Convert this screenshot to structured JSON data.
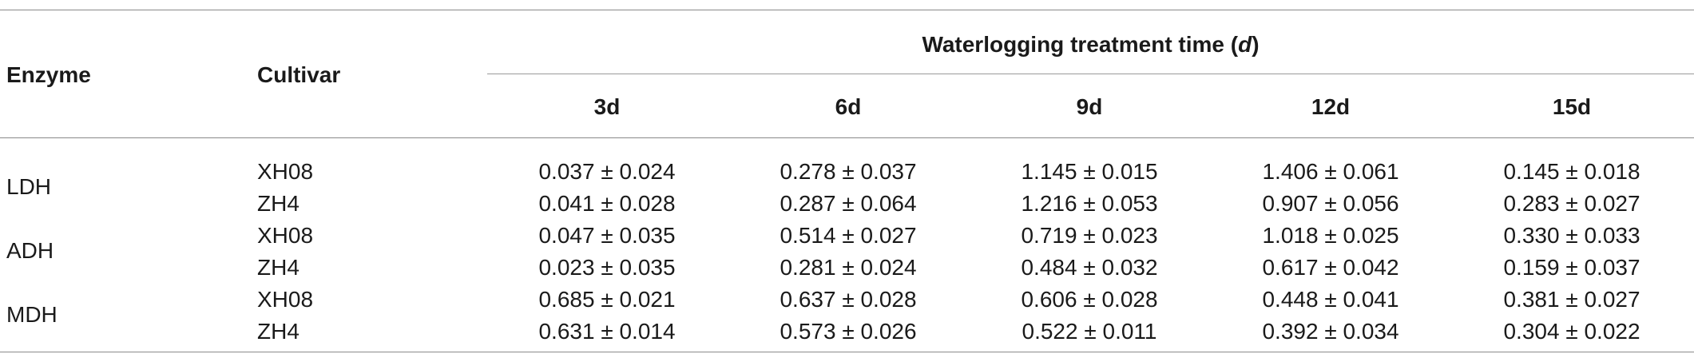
{
  "table": {
    "enzyme_header": "Enzyme",
    "cultivar_header": "Cultivar",
    "span_header": "Waterlogging treatment time (",
    "span_header_unit": "d",
    "span_header_close": ")",
    "columns": [
      "3d",
      "6d",
      "9d",
      "12d",
      "15d"
    ],
    "groups": [
      {
        "enzyme": "LDH",
        "rows": [
          {
            "cultivar": "XH08",
            "values": [
              "0.037 ± 0.024",
              "0.278 ± 0.037",
              "1.145 ± 0.015",
              "1.406 ± 0.061",
              "0.145 ± 0.018"
            ]
          },
          {
            "cultivar": "ZH4",
            "values": [
              "0.041 ± 0.028",
              "0.287 ± 0.064",
              "1.216 ± 0.053",
              "0.907 ± 0.056",
              "0.283 ± 0.027"
            ]
          }
        ]
      },
      {
        "enzyme": "ADH",
        "rows": [
          {
            "cultivar": "XH08",
            "values": [
              "0.047 ± 0.035",
              "0.514 ± 0.027",
              "0.719 ± 0.023",
              "1.018 ± 0.025",
              "0.330 ± 0.033"
            ]
          },
          {
            "cultivar": "ZH4",
            "values": [
              "0.023 ± 0.035",
              "0.281 ± 0.024",
              "0.484 ± 0.032",
              "0.617 ± 0.042",
              "0.159 ± 0.037"
            ]
          }
        ]
      },
      {
        "enzyme": "MDH",
        "rows": [
          {
            "cultivar": "XH08",
            "values": [
              "0.685 ± 0.021",
              "0.637 ± 0.028",
              "0.606 ± 0.028",
              "0.448 ± 0.041",
              "0.381 ± 0.027"
            ]
          },
          {
            "cultivar": "ZH4",
            "values": [
              "0.631 ± 0.014",
              "0.573 ± 0.026",
              "0.522 ± 0.011",
              "0.392 ± 0.034",
              "0.304 ± 0.022"
            ]
          }
        ]
      }
    ]
  }
}
